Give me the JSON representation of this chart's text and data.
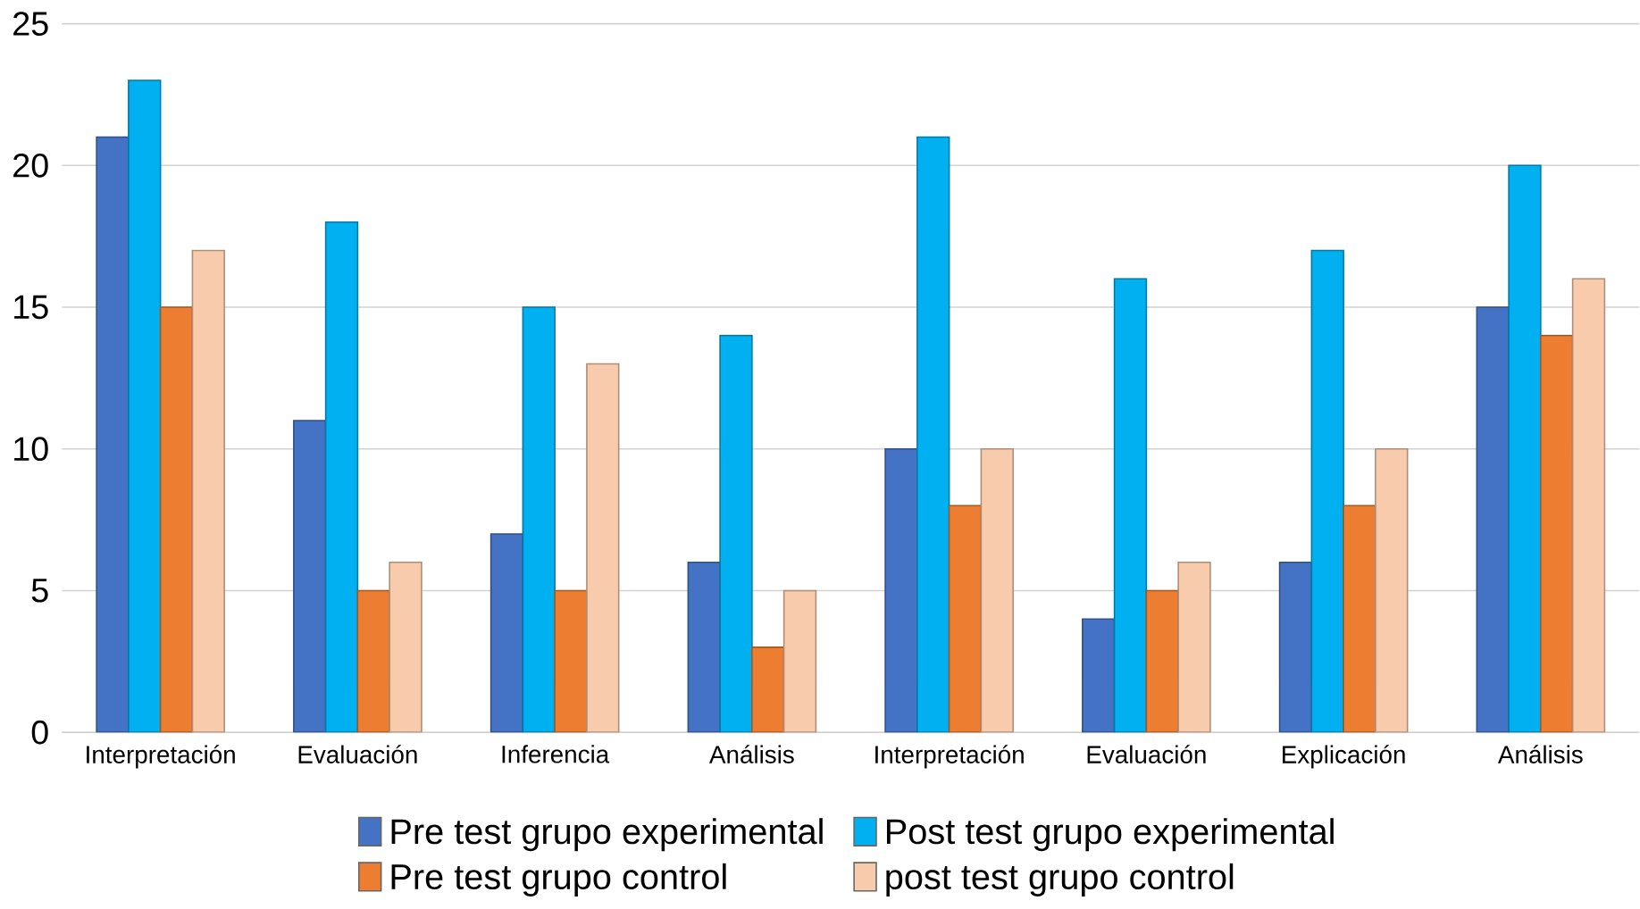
{
  "chart_data": {
    "type": "bar",
    "categories": [
      "Interpretación",
      "Evaluación",
      "Inferencia",
      "Análisis",
      "Interpretación",
      "Evaluación",
      "Explicación",
      "Análisis"
    ],
    "series": [
      {
        "name": "Pre test grupo experimental",
        "color": "#4472c4",
        "values": [
          21,
          11,
          7,
          6,
          10,
          4,
          6,
          15
        ]
      },
      {
        "name": "Post test grupo experimental",
        "color": "#00b0f0",
        "values": [
          23,
          18,
          15,
          14,
          21,
          16,
          17,
          20
        ]
      },
      {
        "name": "Pre test grupo control",
        "color": "#ed7d31",
        "values": [
          15,
          5,
          5,
          3,
          8,
          5,
          8,
          14
        ]
      },
      {
        "name": "post test grupo control",
        "color": "#f8cbad",
        "values": [
          17,
          6,
          13,
          5,
          10,
          6,
          10,
          16
        ]
      }
    ],
    "ylim": [
      0,
      25
    ],
    "yticks": [
      0,
      5,
      10,
      15,
      20,
      25
    ],
    "grid": "y",
    "legend": "bottom"
  }
}
